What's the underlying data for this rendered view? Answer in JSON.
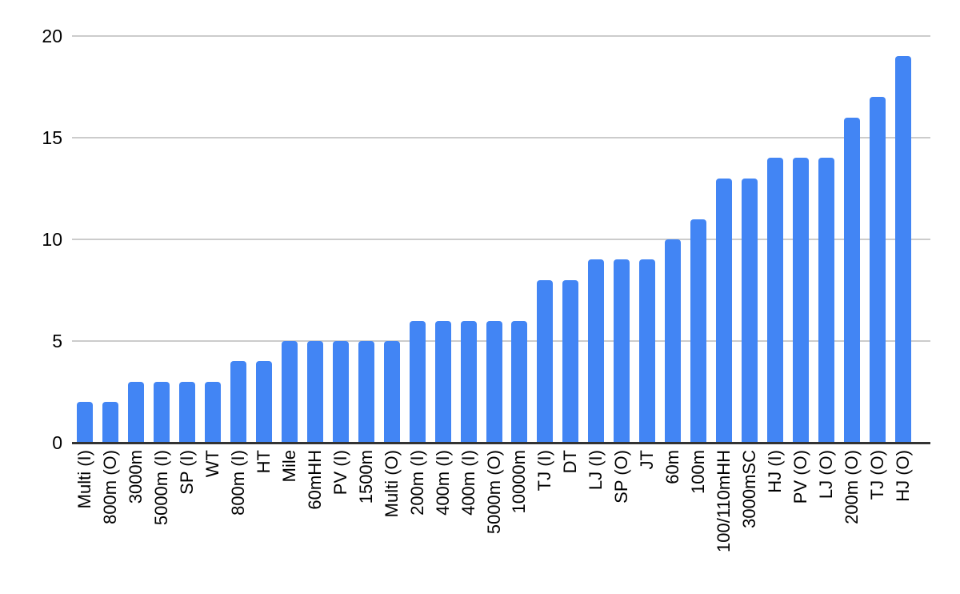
{
  "chart_data": {
    "type": "bar",
    "title": "",
    "xlabel": "",
    "ylabel": "",
    "categories": [
      "Multi (I)",
      "800m (O)",
      "3000m",
      "5000m (I)",
      "SP (I)",
      "WT",
      "800m (I)",
      "HT",
      "Mile",
      "60mHH",
      "PV (I)",
      "1500m",
      "Multi (O)",
      "200m (I)",
      "400m (I)",
      "400m (I)",
      "5000m (O)",
      "10000m",
      "TJ (I)",
      "DT",
      "LJ (I)",
      "SP (O)",
      "JT",
      "60m",
      "100m",
      "100/110mHH",
      "3000mSC",
      "HJ (I)",
      "PV (O)",
      "LJ (O)",
      "200m (O)",
      "TJ (O)",
      "HJ (O)"
    ],
    "values": [
      2,
      2,
      3,
      3,
      3,
      3,
      4,
      4,
      5,
      5,
      5,
      5,
      5,
      6,
      6,
      6,
      6,
      6,
      8,
      8,
      9,
      9,
      9,
      10,
      11,
      13,
      13,
      14,
      14,
      14,
      16,
      17,
      19
    ],
    "ylim": [
      0,
      20
    ],
    "yticks": [
      0,
      5,
      10,
      15,
      20
    ],
    "grid": true,
    "legend_position": "none",
    "colors": {
      "bar": "#4285f4",
      "gridline": "#cccccc",
      "axis_line": "#333333",
      "text": "#000000",
      "background": "#ffffff"
    }
  }
}
